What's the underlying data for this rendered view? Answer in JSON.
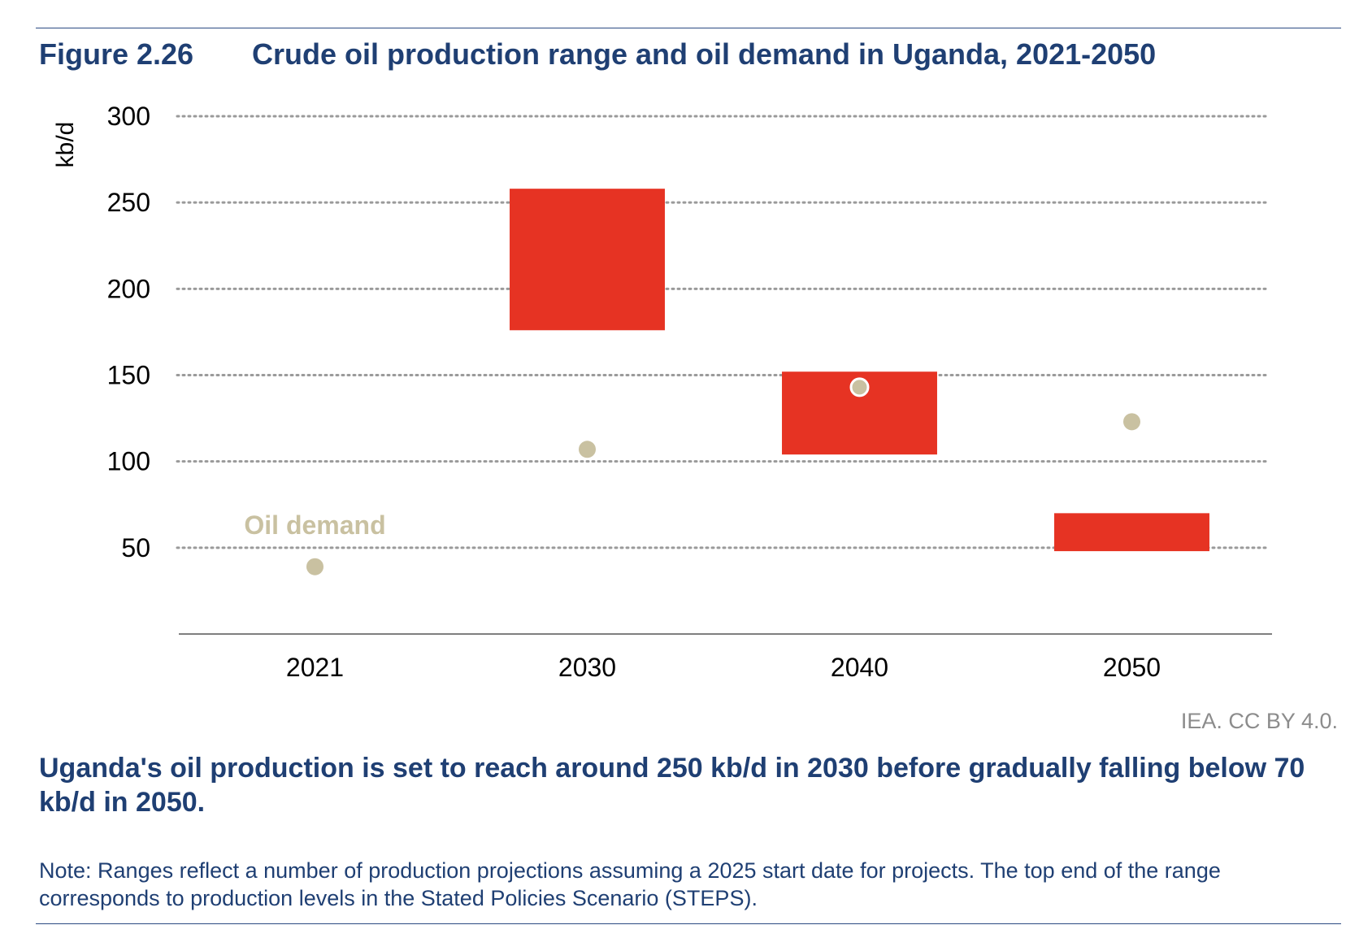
{
  "figure": {
    "number": "Figure 2.26",
    "title": "Crude oil production range and oil demand in Uganda, 2021-2050",
    "credit": "IEA. CC BY 4.0.",
    "takeaway": "Uganda's oil production is set to reach around 250 kb/d in 2030 before gradually falling below 70 kb/d in 2050.",
    "note": "Note: Ranges reflect a number of production projections assuming a 2025 start date for projects. The top end of the range corresponds to production levels in the Stated Policies Scenario (STEPS)."
  },
  "chart_data": {
    "type": "range-bar-with-dots",
    "categories": [
      "2021",
      "2030",
      "2040",
      "2050"
    ],
    "ylabel": "kb/d",
    "xlabel": "",
    "ylim": [
      0,
      300
    ],
    "yticks": [
      50,
      100,
      150,
      200,
      250,
      300
    ],
    "grid": "dotted horizontal",
    "series": [
      {
        "type": "range",
        "color": "#e63323",
        "ranges": [
          null,
          [
            176,
            258
          ],
          [
            104,
            152
          ],
          [
            48,
            70
          ]
        ]
      },
      {
        "name": "Oil demand",
        "type": "dot",
        "color": "#c9c1a1",
        "values": [
          39,
          107,
          143,
          123
        ]
      }
    ],
    "annotations": [
      {
        "text": "Oil demand",
        "category": "2021",
        "y": 63,
        "color": "#c9c1a1"
      }
    ]
  }
}
